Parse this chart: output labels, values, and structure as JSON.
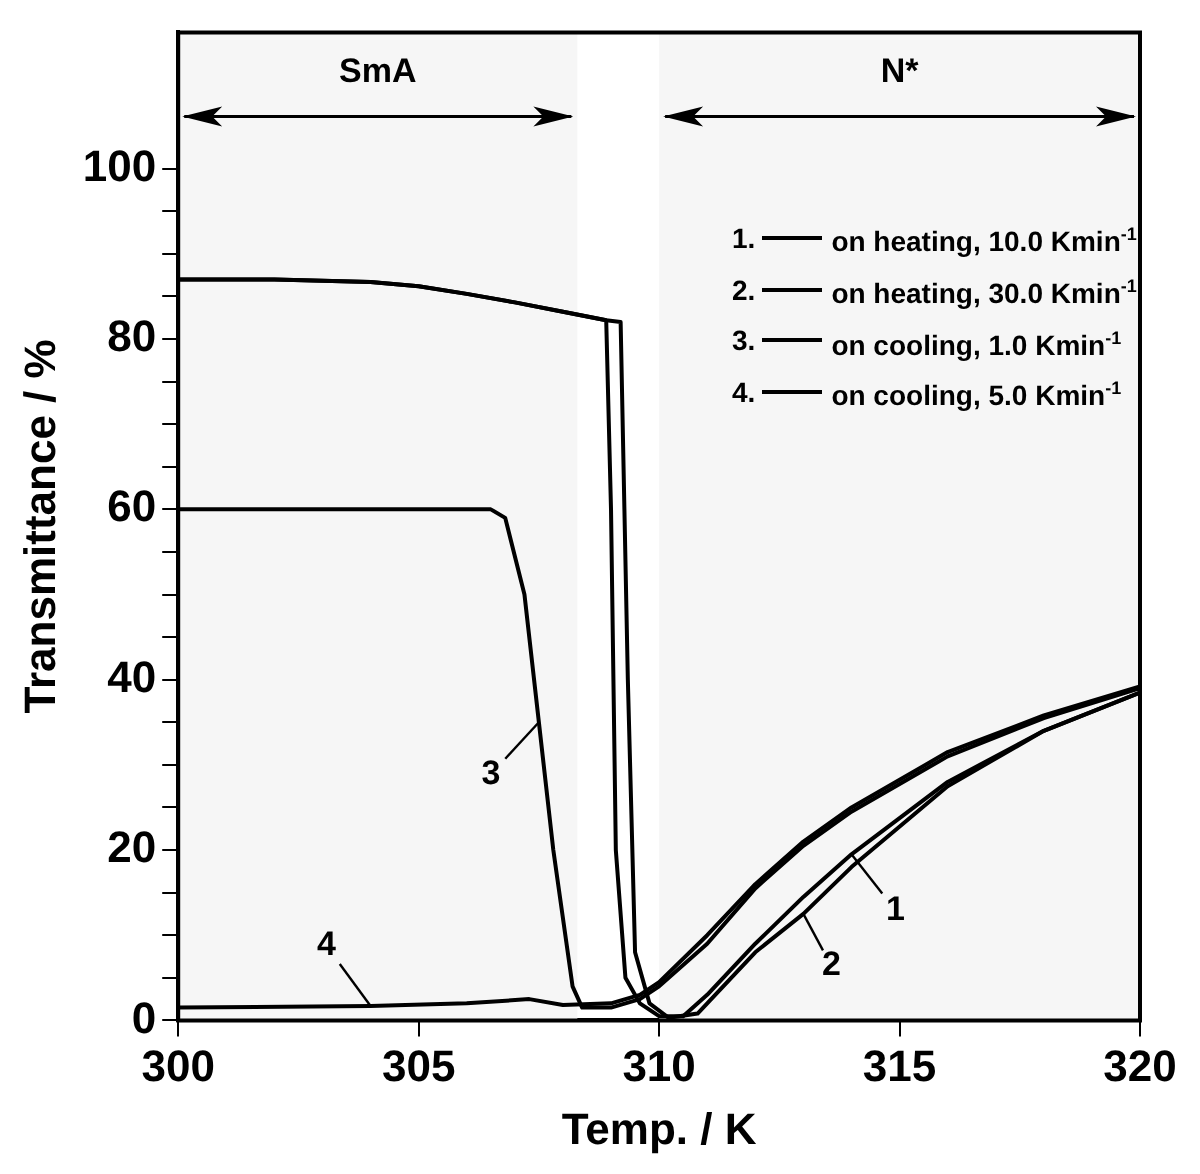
{
  "chart_data": {
    "type": "line",
    "xlabel": "Temp. / K",
    "ylabel": "Transmittance / %",
    "xlim": [
      300,
      320
    ],
    "xticks": [
      300,
      305,
      310,
      315,
      320
    ],
    "ylim": [
      0,
      116
    ],
    "yticks": [
      0,
      {
        "value": 5,
        "label": null
      },
      {
        "value": 10,
        "label": null
      },
      {
        "value": 15,
        "label": null
      },
      20,
      {
        "value": 25,
        "label": null
      },
      {
        "value": 30,
        "label": null
      },
      {
        "value": 35,
        "label": null
      },
      40,
      {
        "value": 45,
        "label": null
      },
      {
        "value": 50,
        "label": null
      },
      {
        "value": 55,
        "label": null
      },
      60,
      {
        "value": 65,
        "label": null
      },
      {
        "value": 70,
        "label": null
      },
      {
        "value": 75,
        "label": null
      },
      80,
      {
        "value": 85,
        "label": null
      },
      {
        "value": 90,
        "label": null
      },
      {
        "value": 95,
        "label": null
      },
      100
    ],
    "grid": false,
    "legend": "top right",
    "marker": "none",
    "line_style": "solid",
    "series": [
      {
        "name": "1. on heating, 10.0 Kmin$^{-1}$",
        "color": "#000000",
        "x": [
          300,
          302,
          304,
          305,
          306,
          307,
          308,
          308.9,
          309.0,
          309.1,
          309.3,
          309.6,
          310,
          310.5,
          311,
          312,
          313,
          314,
          316,
          318,
          320
        ],
        "values": [
          87,
          87,
          86.7,
          86.2,
          85.3,
          84.3,
          83.2,
          82.2,
          60,
          20,
          5,
          2,
          0.5,
          0.5,
          3,
          9,
          14.5,
          19.5,
          28,
          34,
          38.5
        ]
      },
      {
        "name": "2. on heating, 30.0 Kmin$^{-1}$",
        "color": "#000000",
        "x": [
          300,
          302,
          304,
          305,
          306,
          307,
          308,
          308.9,
          309.2,
          309.35,
          309.5,
          309.8,
          310.2,
          310.8,
          311.5,
          312,
          313,
          314,
          316,
          318,
          320
        ],
        "values": [
          87,
          87,
          86.7,
          86.2,
          85.3,
          84.3,
          83.2,
          82.2,
          82,
          40,
          8,
          2,
          0.3,
          0.8,
          5,
          8,
          12.5,
          18,
          27.5,
          34,
          38.5
        ]
      },
      {
        "name": "3. on cooling, 1.0 Kmin$^{-1}$",
        "color": "#000000",
        "x": [
          300,
          306.5,
          306.8,
          307.2,
          307.5,
          307.8,
          308.2,
          308.4,
          309,
          309.6,
          310,
          311,
          312,
          313,
          314,
          316,
          318,
          320
        ],
        "values": [
          60,
          60,
          59,
          50,
          35,
          20,
          4,
          1.5,
          1.5,
          2.5,
          4,
          9,
          15.5,
          20.5,
          24.5,
          31,
          35.5,
          39
        ]
      },
      {
        "name": "4. on cooling, 5.0 Kmin$^{-1}$",
        "color": "#000000",
        "x": [
          300,
          304,
          306,
          307.3,
          308,
          309,
          309.6,
          310,
          311,
          312,
          313,
          314,
          316,
          318,
          320
        ],
        "values": [
          1.5,
          1.7,
          2,
          2.5,
          1.8,
          2,
          3,
          4.5,
          10,
          16,
          21,
          25,
          31.5,
          35.8,
          39.2
        ]
      }
    ],
    "bands": [
      {
        "axis": "x",
        "from": 300,
        "to": 308.3,
        "label": "SmA",
        "color": "#f6f6f6"
      },
      {
        "axis": "x",
        "from": 310,
        "to": 320,
        "label": "N*",
        "color": "#f6f6f6"
      }
    ],
    "annotations": [
      {
        "text": "1",
        "x": 314,
        "y": 19.5
      },
      {
        "text": "2",
        "x": 313,
        "y": 12.5
      },
      {
        "text": "3",
        "x": 307.5,
        "y": 35
      },
      {
        "text": "4",
        "x": 304,
        "y": 1.7
      }
    ]
  }
}
